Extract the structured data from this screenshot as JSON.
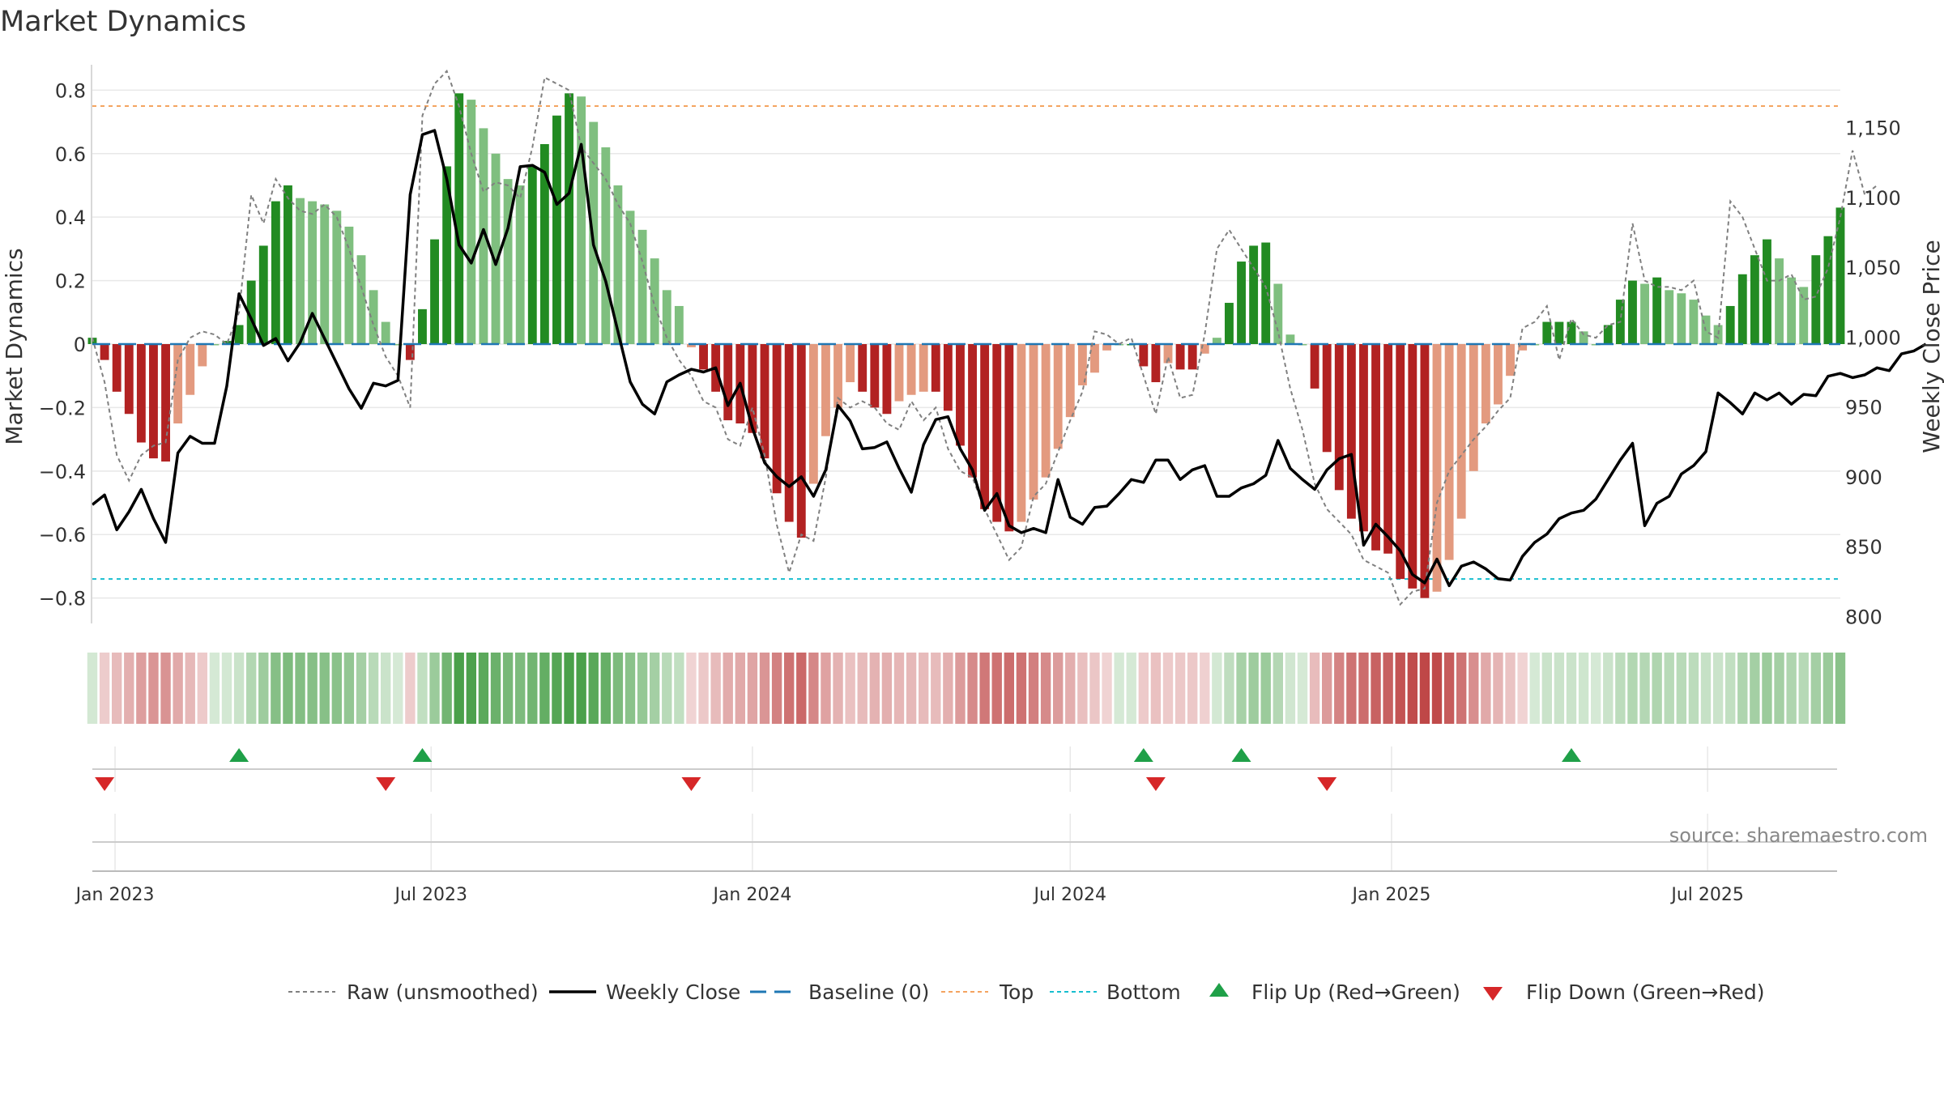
{
  "title": "Market Dynamics",
  "source_text": "source: sharemaestro.com",
  "colors": {
    "strong_green": "#228b22",
    "light_green": "#7fbf7f",
    "strong_red": "#b22222",
    "light_red": "#e39a7f",
    "raw_line": "#808080",
    "close_line": "#000000",
    "baseline": "#1f77b4",
    "top_line": "#f4a460",
    "bottom_line": "#17becf",
    "flip_up": "#1fa048",
    "flip_down": "#d62728",
    "grid": "#e8e8e8",
    "text": "#333333"
  },
  "chart_data": {
    "type": "bar",
    "title": "Market Dynamics",
    "ylabel": "Market Dynamics",
    "y2label": "Weekly Close Price",
    "ylim": [
      -0.88,
      0.88
    ],
    "y2lim": [
      795,
      1195
    ],
    "yticks": [
      "0.8",
      "0.6",
      "0.4",
      "0.2",
      "0",
      "−0.2",
      "−0.4",
      "−0.6",
      "−0.8"
    ],
    "y2ticks": [
      "1,150",
      "1,100",
      "1,050",
      "1,000",
      "950",
      "900",
      "850",
      "800"
    ],
    "xticks": [
      "Jan 2023",
      "Jul 2023",
      "Jan 2024",
      "Jul 2024",
      "Jan 2025",
      "Jul 2025"
    ],
    "top_level": 0.75,
    "bottom_level": -0.74,
    "baseline_level": 0,
    "grid": true,
    "start_week": "2022-12-19",
    "weekly_dynamics": [
      0.02,
      -0.05,
      -0.15,
      -0.22,
      -0.31,
      -0.36,
      -0.37,
      -0.25,
      -0.16,
      -0.07,
      0.0,
      0.01,
      0.06,
      0.2,
      0.31,
      0.45,
      0.5,
      0.46,
      0.45,
      0.44,
      0.42,
      0.37,
      0.28,
      0.17,
      0.07,
      0.0,
      -0.05,
      0.11,
      0.33,
      0.56,
      0.79,
      0.77,
      0.68,
      0.6,
      0.52,
      0.5,
      0.56,
      0.63,
      0.72,
      0.79,
      0.78,
      0.7,
      0.62,
      0.5,
      0.42,
      0.36,
      0.27,
      0.17,
      0.12,
      -0.01,
      -0.08,
      -0.15,
      -0.24,
      -0.25,
      -0.28,
      -0.36,
      -0.47,
      -0.56,
      -0.61,
      -0.44,
      -0.29,
      -0.2,
      -0.12,
      -0.15,
      -0.2,
      -0.22,
      -0.18,
      -0.16,
      -0.15,
      -0.15,
      -0.21,
      -0.32,
      -0.42,
      -0.52,
      -0.56,
      -0.59,
      -0.56,
      -0.49,
      -0.42,
      -0.33,
      -0.23,
      -0.13,
      -0.09,
      -0.02,
      0.0,
      0.0,
      -0.07,
      -0.12,
      -0.06,
      -0.08,
      -0.08,
      -0.03,
      0.02,
      0.13,
      0.26,
      0.31,
      0.32,
      0.19,
      0.03,
      0.0,
      -0.14,
      -0.34,
      -0.46,
      -0.55,
      -0.59,
      -0.65,
      -0.66,
      -0.74,
      -0.77,
      -0.8,
      -0.78,
      -0.68,
      -0.55,
      -0.4,
      -0.25,
      -0.19,
      -0.1,
      -0.02,
      0.0,
      0.07,
      0.07,
      0.07,
      0.04,
      0.0,
      0.06,
      0.14,
      0.2,
      0.19,
      0.21,
      0.17,
      0.16,
      0.14,
      0.09,
      0.06,
      0.12,
      0.22,
      0.28,
      0.33,
      0.27,
      0.21,
      0.18,
      0.28,
      0.34,
      0.43
    ],
    "weekly_raw": [
      0.02,
      -0.12,
      -0.35,
      -0.43,
      -0.35,
      -0.32,
      -0.31,
      -0.05,
      0.02,
      0.04,
      0.03,
      0.0,
      0.1,
      0.47,
      0.38,
      0.52,
      0.46,
      0.42,
      0.41,
      0.44,
      0.4,
      0.3,
      0.18,
      0.06,
      -0.04,
      -0.1,
      -0.2,
      0.72,
      0.82,
      0.86,
      0.75,
      0.6,
      0.48,
      0.51,
      0.5,
      0.46,
      0.62,
      0.84,
      0.82,
      0.8,
      0.62,
      0.57,
      0.52,
      0.44,
      0.38,
      0.26,
      0.12,
      0.02,
      -0.05,
      -0.1,
      -0.18,
      -0.2,
      -0.3,
      -0.32,
      -0.2,
      -0.35,
      -0.57,
      -0.72,
      -0.6,
      -0.62,
      -0.42,
      -0.17,
      -0.2,
      -0.18,
      -0.2,
      -0.25,
      -0.27,
      -0.18,
      -0.24,
      -0.2,
      -0.33,
      -0.4,
      -0.42,
      -0.52,
      -0.6,
      -0.68,
      -0.64,
      -0.48,
      -0.44,
      -0.34,
      -0.24,
      -0.15,
      0.04,
      0.03,
      0.0,
      0.02,
      -0.1,
      -0.22,
      -0.04,
      -0.17,
      -0.16,
      0.03,
      0.3,
      0.36,
      0.3,
      0.24,
      0.18,
      0.04,
      -0.14,
      -0.27,
      -0.44,
      -0.52,
      -0.56,
      -0.6,
      -0.68,
      -0.7,
      -0.72,
      -0.82,
      -0.78,
      -0.77,
      -0.5,
      -0.4,
      -0.35,
      -0.3,
      -0.26,
      -0.21,
      -0.17,
      0.05,
      0.07,
      0.12,
      -0.05,
      0.08,
      0.03,
      0.02,
      0.06,
      0.07,
      0.38,
      0.2,
      0.18,
      0.18,
      0.17,
      0.2,
      0.04,
      0.02,
      0.45,
      0.4,
      0.3,
      0.2,
      0.2,
      0.22,
      0.14,
      0.15,
      0.24,
      0.4,
      0.61,
      0.47,
      0.5
    ],
    "weekly_close": [
      880,
      887,
      862,
      875,
      891,
      870,
      853,
      917,
      929,
      924,
      924,
      965,
      1031,
      1013,
      994,
      999,
      983,
      996,
      1017,
      999,
      981,
      963,
      949,
      967,
      965,
      969,
      1102,
      1145,
      1148,
      1113,
      1066,
      1053,
      1077,
      1052,
      1078,
      1122,
      1123,
      1118,
      1095,
      1103,
      1138,
      1066,
      1040,
      1004,
      968,
      952,
      945,
      968,
      973,
      977,
      975,
      978,
      951,
      967,
      935,
      910,
      900,
      893,
      900,
      886,
      905,
      951,
      940,
      920,
      921,
      925,
      906,
      889,
      923,
      941,
      943,
      920,
      905,
      876,
      888,
      865,
      860,
      863,
      860,
      898,
      871,
      866,
      878,
      879,
      888,
      898,
      896,
      912,
      912,
      898,
      905,
      908,
      886,
      886,
      892,
      895,
      901,
      926,
      906,
      898,
      891,
      905,
      913,
      916,
      851,
      866,
      857,
      847,
      830,
      824,
      841,
      822,
      836,
      839,
      834,
      827,
      826,
      843,
      853,
      859,
      870,
      874,
      876,
      884,
      898,
      912,
      924,
      865,
      881,
      886,
      902,
      908,
      918,
      960,
      953,
      945,
      960,
      955,
      960,
      952,
      959,
      958,
      972,
      974,
      971,
      973,
      978,
      976,
      988,
      990,
      995
    ],
    "flip_up_dates": [
      "2023-03-13",
      "2023-06-26",
      "2024-08-12",
      "2024-10-07",
      "2025-04-14"
    ],
    "flip_down_dates": [
      "2022-12-26",
      "2023-06-05",
      "2023-11-27",
      "2024-08-19",
      "2024-11-25"
    ]
  },
  "legend": {
    "raw": "Raw (unsmoothed)",
    "close": "Weekly Close",
    "baseline": "Baseline (0)",
    "top": "Top",
    "bottom": "Bottom",
    "flip_up": "Flip Up (Red→Green)",
    "flip_down": "Flip Down (Green→Red)"
  }
}
